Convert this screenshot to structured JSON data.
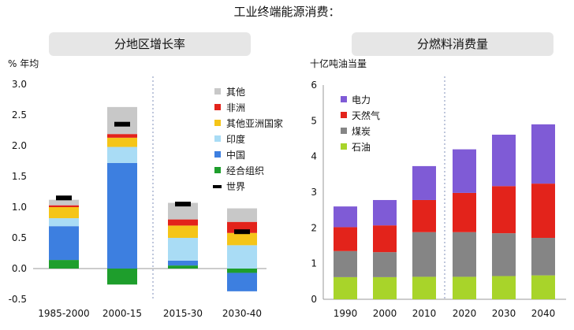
{
  "title": "工业终端能源消费：",
  "chart_data": [
    {
      "type": "bar",
      "stacked": true,
      "title": "分地区增长率",
      "ylabel": "% 年均",
      "xlabel": "",
      "ylim": [
        -0.5,
        3.0
      ],
      "yticks": [
        "-0.5",
        "0.0",
        "0.5",
        "1.0",
        "1.5",
        "2.0",
        "2.5",
        "3.0"
      ],
      "categories": [
        "1985-2000",
        "2000-15",
        "2015-30",
        "2030-40"
      ],
      "series": [
        {
          "name": "经合组织",
          "color": "#1e9e2c",
          "values": [
            0.14,
            -0.26,
            0.05,
            -0.07
          ]
        },
        {
          "name": "中国",
          "color": "#3d7fe0",
          "values": [
            0.55,
            1.72,
            0.08,
            -0.3
          ]
        },
        {
          "name": "印度",
          "color": "#a9dcf5",
          "values": [
            0.13,
            0.26,
            0.37,
            0.38
          ]
        },
        {
          "name": "其他亚洲国家",
          "color": "#f5c518",
          "values": [
            0.18,
            0.15,
            0.2,
            0.2
          ]
        },
        {
          "name": "非洲",
          "color": "#e3231b",
          "values": [
            0.03,
            0.06,
            0.1,
            0.18
          ]
        },
        {
          "name": "其他",
          "color": "#c8c8c8",
          "values": [
            0.09,
            0.44,
            0.27,
            0.22
          ]
        }
      ],
      "marker": {
        "name": "世界",
        "values": [
          1.15,
          2.35,
          1.05,
          0.6
        ]
      },
      "forecast_divider_after": "2000-15",
      "legend_position": "right"
    },
    {
      "type": "bar",
      "stacked": true,
      "title": "分燃料消费量",
      "ylabel": "十亿吨油当量",
      "xlabel": "",
      "ylim": [
        0,
        6
      ],
      "yticks": [
        "0",
        "1",
        "2",
        "3",
        "4",
        "5",
        "6"
      ],
      "categories": [
        "1990",
        "2000",
        "2010",
        "2020",
        "2030",
        "2040"
      ],
      "series": [
        {
          "name": "石油",
          "color": "#a8d42a",
          "values": [
            0.62,
            0.62,
            0.63,
            0.63,
            0.65,
            0.67
          ]
        },
        {
          "name": "煤炭",
          "color": "#858585",
          "values": [
            0.73,
            0.7,
            1.25,
            1.25,
            1.2,
            1.05
          ]
        },
        {
          "name": "天然气",
          "color": "#e3231b",
          "values": [
            0.67,
            0.75,
            0.9,
            1.1,
            1.32,
            1.52
          ]
        },
        {
          "name": "电力",
          "color": "#7f5bd6",
          "values": [
            0.58,
            0.71,
            0.95,
            1.22,
            1.44,
            1.66
          ]
        }
      ],
      "forecast_divider_after": "2010",
      "legend_position": "top-left"
    }
  ]
}
